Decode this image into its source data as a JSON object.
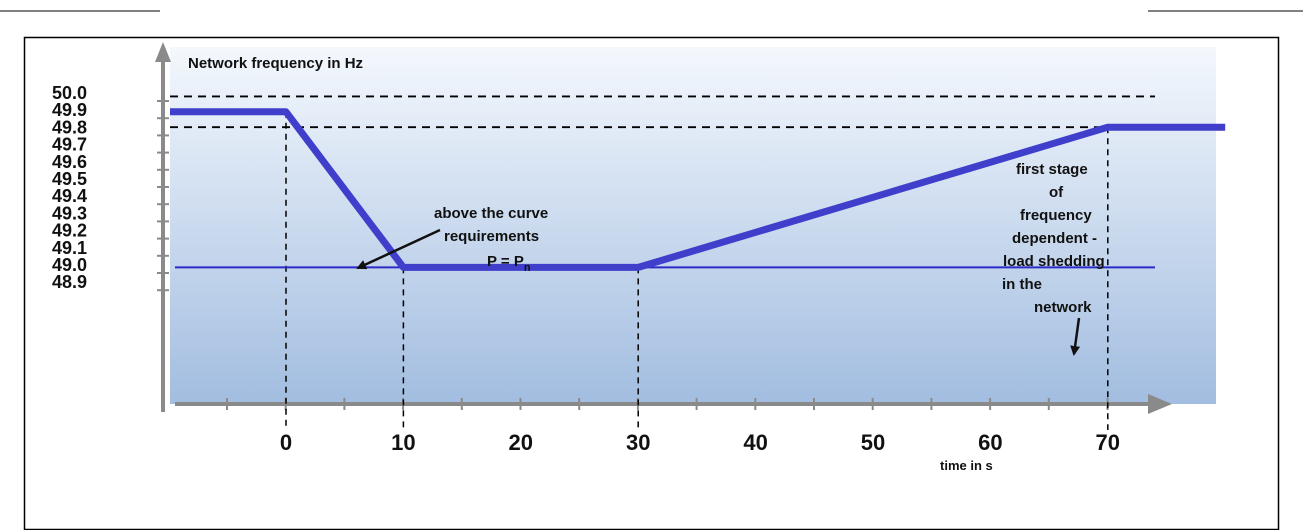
{
  "chart_data": {
    "type": "line",
    "ylabel": "Network frequency in Hz",
    "xlabel": "time in s",
    "y_ticks": [
      "50.0",
      "49.9",
      "49.8",
      "49.7",
      "49.6",
      "49.5",
      "49.4",
      "49.3",
      "49.2",
      "49.1",
      "49.0",
      "48.9"
    ],
    "x_ticks": [
      "0",
      "10",
      "20",
      "30",
      "40",
      "50",
      "60",
      "70"
    ],
    "x_tick_values": [
      0,
      10,
      20,
      30,
      40,
      50,
      60,
      70
    ],
    "ylim": [
      48.8,
      50.08
    ],
    "xlim": [
      -10,
      80
    ],
    "series": [
      {
        "x": [
          -10,
          0,
          10,
          30,
          70,
          80
        ],
        "y": [
          49.88,
          49.88,
          48.97,
          48.97,
          49.79,
          49.79
        ],
        "color": "#3f3fcc"
      }
    ],
    "reference_lines": [
      {
        "y": 49.97,
        "style": "dashed",
        "color": "#000000"
      },
      {
        "y": 49.79,
        "style": "dashed",
        "color": "#000000"
      },
      {
        "y": 48.97,
        "style": "solid",
        "color": "#2a2ac8"
      }
    ],
    "vertical_guides": [
      0,
      10,
      30,
      70
    ],
    "annotations": [
      {
        "lines": [
          "above the curve",
          "requirements"
        ]
      },
      {
        "lines": [
          "P =  P",
          "n"
        ]
      },
      {
        "lines": [
          "first stage",
          "of",
          "frequency",
          "dependent  -",
          "load shedding",
          "in the",
          "network"
        ]
      }
    ],
    "grid": false,
    "legend": "none"
  }
}
